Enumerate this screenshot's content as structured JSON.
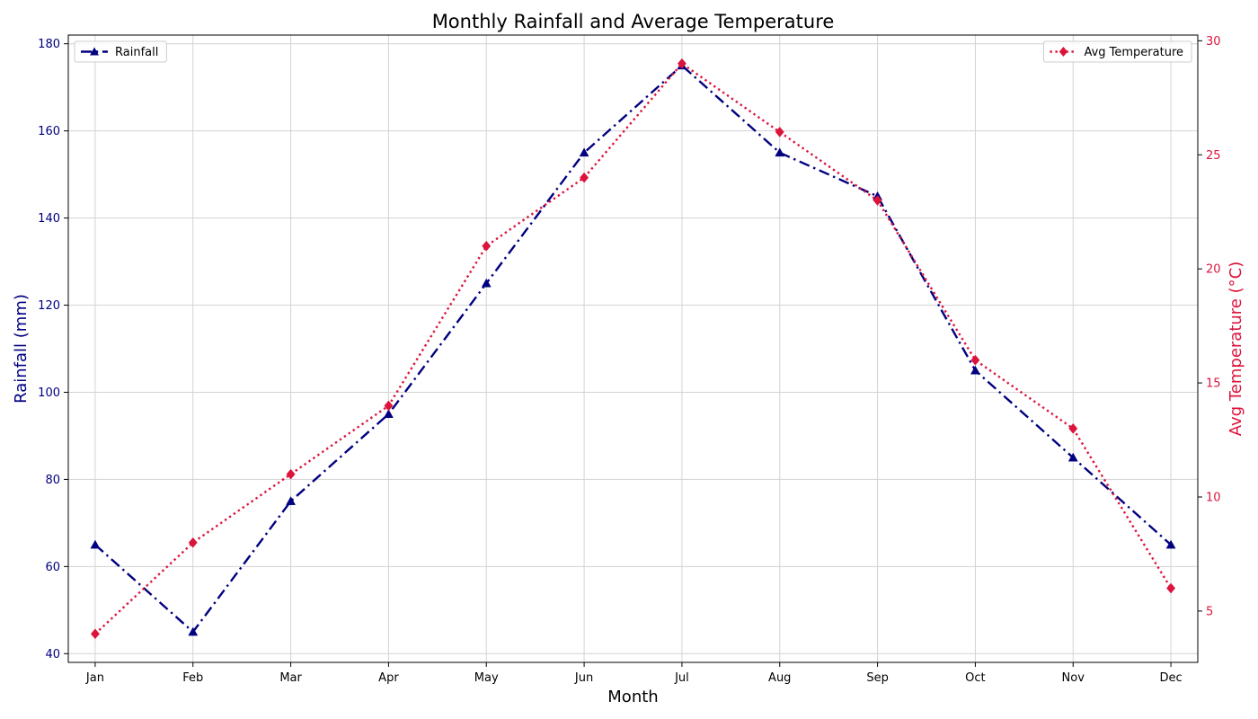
{
  "chart_data": {
    "type": "line",
    "title": "Monthly Rainfall and Average Temperature",
    "xlabel": "Month",
    "categories": [
      "Jan",
      "Feb",
      "Mar",
      "Apr",
      "May",
      "Jun",
      "Jul",
      "Aug",
      "Sep",
      "Oct",
      "Nov",
      "Dec"
    ],
    "grid": true,
    "axes": {
      "left": {
        "label": "Rainfall (mm)",
        "ylim": [
          38,
          182
        ],
        "ticks": [
          40,
          60,
          80,
          100,
          120,
          140,
          160,
          180
        ],
        "color": "#000080"
      },
      "right": {
        "label": "Avg Temperature (°C)",
        "ylim": [
          2.75,
          30.25
        ],
        "ticks": [
          5,
          10,
          15,
          20,
          25,
          30
        ],
        "color": "#dc143c"
      }
    },
    "series": [
      {
        "name": "Rainfall",
        "axis": "left",
        "values": [
          65,
          45,
          75,
          95,
          125,
          155,
          175,
          155,
          145,
          105,
          85,
          65
        ],
        "color": "#000080",
        "linestyle": "dashdot",
        "marker": "triangle",
        "legend_position": "top-left"
      },
      {
        "name": "Avg Temperature",
        "axis": "right",
        "values": [
          4,
          8,
          11,
          14,
          21,
          24,
          29,
          26,
          23,
          16,
          13,
          6
        ],
        "color": "#dc143c",
        "linestyle": "dotted",
        "marker": "diamond",
        "legend_position": "top-right"
      }
    ]
  }
}
